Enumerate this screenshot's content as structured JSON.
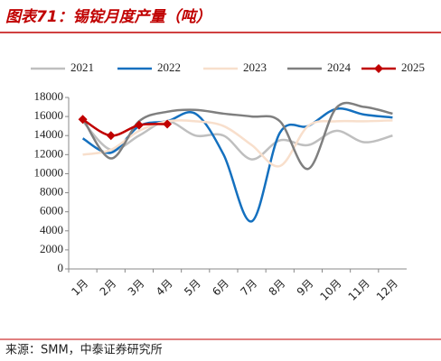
{
  "chart_data": {
    "type": "line",
    "title": "图表71：锡锭月度产量（吨）",
    "source": "来源：SMM，中泰证券研究所",
    "categories": [
      "1月",
      "2月",
      "3月",
      "4月",
      "5月",
      "6月",
      "7月",
      "8月",
      "9月",
      "10月",
      "11月",
      "12月"
    ],
    "ylim": [
      0,
      18000
    ],
    "yticks": [
      0,
      2000,
      4000,
      6000,
      8000,
      10000,
      12000,
      14000,
      16000,
      18000
    ],
    "legend": "top",
    "series": [
      {
        "name": "2021",
        "color": "#bfbfbf",
        "values": [
          15500,
          12500,
          14000,
          15500,
          14000,
          14000,
          11500,
          13500,
          13000,
          14500,
          13300,
          14000
        ]
      },
      {
        "name": "2022",
        "color": "#1470bf",
        "values": [
          13700,
          12200,
          15000,
          15500,
          16300,
          12000,
          5000,
          14300,
          15000,
          16800,
          16200,
          15900
        ]
      },
      {
        "name": "2023",
        "color": "#f8dfcc",
        "values": [
          12000,
          12500,
          14500,
          15500,
          15500,
          15000,
          13000,
          10800,
          15000,
          15500,
          15500,
          15600
        ]
      },
      {
        "name": "2024",
        "color": "#7f7f7f",
        "values": [
          15800,
          11600,
          15500,
          16500,
          16700,
          16300,
          16000,
          15500,
          10500,
          16900,
          17000,
          16300
        ]
      },
      {
        "name": "2025",
        "color": "#c00000",
        "marker": "diamond",
        "values": [
          15700,
          14000,
          15100,
          15200,
          null,
          null,
          null,
          null,
          null,
          null,
          null,
          null
        ]
      }
    ]
  }
}
